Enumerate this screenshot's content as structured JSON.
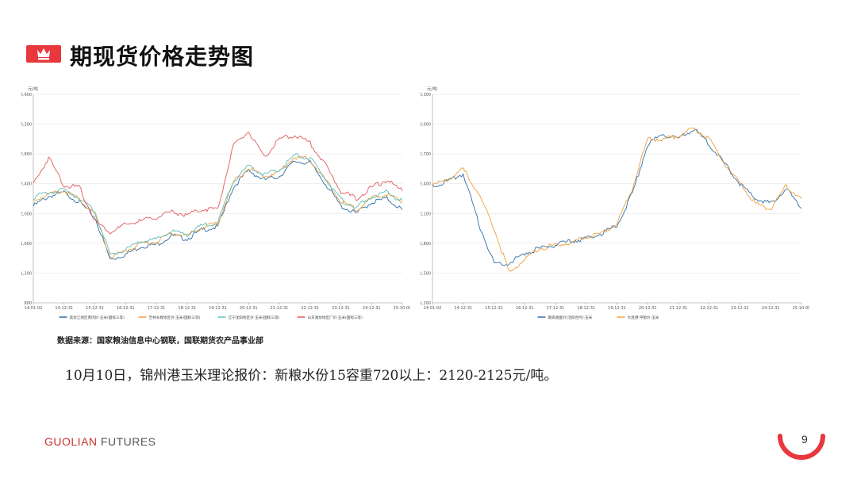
{
  "slide": {
    "title": "期现货价格走势图",
    "source": "数据来源：国家粮油信息中心钢联，国联期货农产品事业部",
    "note": "10月10日，锦州港玉米理论报价：新粮水份15容重720以上：2120-2125元/吨。",
    "brand_left": "GUOLIAN",
    "brand_right": " FUTURES",
    "page_number": "9",
    "colors": {
      "accent": "#e8383d",
      "grid": "#e6e6e6"
    }
  },
  "chart_data": [
    {
      "type": "line",
      "unit_label": "元/吨",
      "ylim": [
        800,
        3600
      ],
      "yticks": [
        "800",
        "1,200",
        "1,600",
        "2,000",
        "2,400",
        "2,800",
        "3,200",
        "3,600"
      ],
      "xticks": [
        "14-01-02",
        "14-12-31",
        "15-12-31",
        "16-12-31",
        "17-12-31",
        "18-12-31",
        "19-12-31",
        "20-12-31",
        "21-12-31",
        "22-12-31",
        "23-12-31",
        "24-12-31",
        "25-10-09"
      ],
      "x": [
        "2014-01",
        "2014-07",
        "2015-01",
        "2015-07",
        "2016-01",
        "2016-07",
        "2017-01",
        "2017-07",
        "2018-01",
        "2018-07",
        "2019-01",
        "2019-07",
        "2020-01",
        "2020-07",
        "2021-01",
        "2021-07",
        "2022-01",
        "2022-07",
        "2023-01",
        "2023-07",
        "2024-01",
        "2024-07",
        "2025-01",
        "2025-07",
        "2025-10"
      ],
      "grid": true,
      "legend": "bottom",
      "series": [
        {
          "name": "黑龙江地区青冈价:玉米(国标三等)",
          "color": "#2e6fa8",
          "values": [
            2100,
            2230,
            2280,
            2150,
            1950,
            1380,
            1450,
            1560,
            1580,
            1700,
            1660,
            1780,
            1820,
            2350,
            2580,
            2450,
            2500,
            2700,
            2680,
            2400,
            2100,
            2000,
            2150,
            2200,
            2050
          ]
        },
        {
          "name": "吉林长春地区价:玉米(国标三等)",
          "color": "#f0a03c",
          "values": [
            2180,
            2260,
            2300,
            2190,
            2000,
            1420,
            1490,
            1600,
            1620,
            1740,
            1700,
            1820,
            1860,
            2420,
            2620,
            2500,
            2560,
            2760,
            2720,
            2450,
            2160,
            2060,
            2200,
            2260,
            2150
          ]
        },
        {
          "name": "辽宁沈阳地区价:玉米(国标三等)",
          "color": "#5dbfbf",
          "values": [
            2220,
            2280,
            2320,
            2210,
            2020,
            1440,
            1510,
            1620,
            1650,
            1760,
            1720,
            1840,
            1880,
            2440,
            2640,
            2520,
            2580,
            2780,
            2740,
            2470,
            2180,
            2080,
            2220,
            2280,
            2170
          ]
        },
        {
          "name": "山东潍坊地区厂价:玉米(国标三等)",
          "color": "#e25b5b",
          "values": [
            2400,
            2750,
            2380,
            2350,
            1900,
            1750,
            1850,
            1900,
            1950,
            2020,
            1980,
            2060,
            2060,
            2900,
            3100,
            2750,
            3000,
            3050,
            2950,
            2650,
            2300,
            2200,
            2350,
            2450,
            2300
          ]
        }
      ]
    },
    {
      "type": "line",
      "unit_label": "元/吨",
      "ylim": [
        1200,
        3300
      ],
      "yticks": [
        "1,200",
        "1,500",
        "1,800",
        "2,100",
        "2,400",
        "2,700",
        "3,000",
        "3,300"
      ],
      "xticks": [
        "14-01-02",
        "14-12-31",
        "15-12-31",
        "16-12-31",
        "17-12-31",
        "18-12-31",
        "19-12-31",
        "20-12-31",
        "21-12-31",
        "22-12-31",
        "23-12-31",
        "24-12-31",
        "25-10-09"
      ],
      "x": [
        "2014-01",
        "2014-07",
        "2015-01",
        "2015-07",
        "2016-01",
        "2016-07",
        "2017-01",
        "2017-07",
        "2018-01",
        "2018-07",
        "2019-01",
        "2019-07",
        "2020-01",
        "2020-07",
        "2021-01",
        "2021-07",
        "2022-01",
        "2022-07",
        "2023-01",
        "2023-07",
        "2024-01",
        "2024-07",
        "2025-01",
        "2025-07",
        "2025-10"
      ],
      "grid": true,
      "legend": "bottom",
      "series": [
        {
          "name": "期货收盘价(活跃合约):玉米",
          "color": "#2e6fa8",
          "values": [
            2380,
            2420,
            2500,
            2000,
            1600,
            1600,
            1700,
            1750,
            1780,
            1820,
            1850,
            1900,
            1980,
            2300,
            2800,
            2900,
            2850,
            2950,
            2800,
            2600,
            2400,
            2250,
            2200,
            2350,
            2150
          ]
        },
        {
          "name": "大连港:平舱价:玉米",
          "color": "#f0a03c",
          "values": [
            2380,
            2450,
            2550,
            2300,
            1950,
            1500,
            1650,
            1750,
            1780,
            1800,
            1860,
            1900,
            2000,
            2350,
            2850,
            2850,
            2880,
            2960,
            2850,
            2600,
            2400,
            2200,
            2150,
            2380,
            2250
          ]
        }
      ]
    }
  ]
}
